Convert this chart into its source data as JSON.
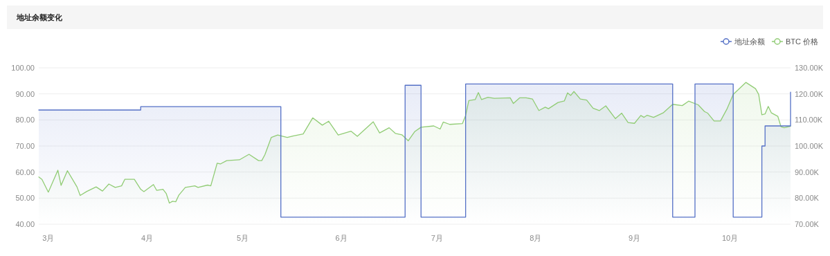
{
  "chart_data": {
    "type": "area",
    "title": "地址余额变化",
    "xlim": [
      "--02-26",
      "--10-20"
    ],
    "xticks": [
      {
        "value": "--03-01",
        "label": "3月"
      },
      {
        "value": "--04-01",
        "label": "4月"
      },
      {
        "value": "--05-01",
        "label": "5月"
      },
      {
        "value": "--06-01",
        "label": "6月"
      },
      {
        "value": "--07-01",
        "label": "7月"
      },
      {
        "value": "--08-01",
        "label": "8月"
      },
      {
        "value": "--09-01",
        "label": "9月"
      },
      {
        "value": "--10-01",
        "label": "10月"
      }
    ],
    "ylim": [
      40,
      100
    ],
    "yticks": [
      {
        "value": 40,
        "label": "40.00"
      },
      {
        "value": 50,
        "label": "50.00"
      },
      {
        "value": 60,
        "label": "60.00"
      },
      {
        "value": 70,
        "label": "70.00"
      },
      {
        "value": 80,
        "label": "80.00"
      },
      {
        "value": 90,
        "label": "90.00"
      },
      {
        "value": 100,
        "label": "100.00"
      }
    ],
    "y2lim": [
      70000,
      130000
    ],
    "y2ticks": [
      {
        "value": 70000,
        "label": "70.00K"
      },
      {
        "value": 80000,
        "label": "80.00K"
      },
      {
        "value": 90000,
        "label": "90.00K"
      },
      {
        "value": 100000,
        "label": "100.00K"
      },
      {
        "value": 110000,
        "label": "110.00K"
      },
      {
        "value": 120000,
        "label": "120.00K"
      },
      {
        "value": 130000,
        "label": "130.00K"
      }
    ],
    "grid": "y",
    "legend": "top right",
    "series": [
      {
        "name": "地址余额",
        "color": "#5470c6",
        "x": [
          "--02-26",
          "--03-30",
          "--03-30",
          "--05-13",
          "--05-13",
          "--06-21",
          "--06-21",
          "--06-26",
          "--06-26",
          "--07-10",
          "--07-10",
          "--09-13",
          "--09-13",
          "--09-20",
          "--09-20",
          "--10-02",
          "--10-02",
          "--10-11",
          "--10-11",
          "--10-12",
          "--10-12",
          "--10-20",
          "--10-20"
        ],
        "values": [
          83.8,
          83.8,
          85.1,
          85.1,
          42.7,
          42.7,
          93.3,
          93.3,
          42.7,
          42.7,
          93.8,
          93.8,
          42.7,
          42.7,
          93.8,
          93.8,
          42.7,
          42.7,
          70,
          70,
          77.7,
          77.7,
          90.7
        ]
      },
      {
        "name": "BTC 价格",
        "axis": "y2",
        "color": "#91cc75",
        "x": [
          "--02-26",
          "--02-27",
          "--03-01",
          "--03-04",
          "--03-05",
          "--03-07",
          "--03-10",
          "--03-11",
          "--03-13",
          "--03-16",
          "--03-18",
          "--03-20",
          "--03-22",
          "--03-24",
          "--03-25",
          "--03-28",
          "--03-30",
          "--03-31",
          "--04-03",
          "--04-04",
          "--04-06",
          "--04-07",
          "--04-08",
          "--04-09",
          "--04-10",
          "--04-11",
          "--04-13",
          "--04-16",
          "--04-17",
          "--04-20",
          "--04-21",
          "--04-23",
          "--04-24",
          "--04-26",
          "--04-30",
          "--05-03",
          "--05-06",
          "--05-07",
          "--05-08",
          "--05-10",
          "--05-12",
          "--05-15",
          "--05-17",
          "--05-20",
          "--05-23",
          "--05-26",
          "--05-28",
          "--05-31",
          "--06-04",
          "--06-06",
          "--06-11",
          "--06-13",
          "--06-16",
          "--06-18",
          "--06-20",
          "--06-22",
          "--06-24",
          "--06-26",
          "--06-30",
          "--07-02",
          "--07-03",
          "--07-05",
          "--07-09",
          "--07-10",
          "--07-11",
          "--07-13",
          "--07-14",
          "--07-15",
          "--07-17",
          "--07-19",
          "--07-24",
          "--07-25",
          "--07-27",
          "--07-29",
          "--07-31",
          "--08-02",
          "--08-04",
          "--08-05",
          "--08-08",
          "--08-10",
          "--08-11",
          "--08-12",
          "--08-13",
          "--08-15",
          "--08-17",
          "--08-19",
          "--08-21",
          "--08-23",
          "--08-26",
          "--08-28",
          "--08-30",
          "--09-01",
          "--09-03",
          "--09-04",
          "--09-05",
          "--09-07",
          "--09-10",
          "--09-13",
          "--09-16",
          "--09-18",
          "--09-21",
          "--09-23",
          "--09-24",
          "--09-26",
          "--09-28",
          "--09-30",
          "--10-02",
          "--10-06",
          "--10-09",
          "--10-10",
          "--10-11",
          "--10-12",
          "--10-13",
          "--10-14",
          "--10-16",
          "--10-17",
          "--10-18",
          "--10-20"
        ],
        "values": [
          88100,
          87200,
          82300,
          90700,
          84900,
          90500,
          84300,
          81000,
          82500,
          84300,
          82700,
          85400,
          84100,
          84700,
          87200,
          87200,
          83400,
          82500,
          85200,
          83000,
          83400,
          81800,
          78100,
          78800,
          78600,
          81200,
          84100,
          84700,
          84100,
          85000,
          84700,
          93400,
          93100,
          94400,
          94700,
          96800,
          94400,
          94400,
          96700,
          103300,
          104200,
          103300,
          103900,
          104600,
          110800,
          108000,
          109500,
          104200,
          105700,
          103700,
          109300,
          105000,
          107000,
          104800,
          104300,
          102000,
          105500,
          107200,
          107700,
          106500,
          109200,
          108300,
          108600,
          111700,
          117400,
          117800,
          120500,
          117800,
          118700,
          118300,
          118500,
          116300,
          118500,
          118500,
          118000,
          113600,
          114900,
          114300,
          116700,
          117300,
          120400,
          119400,
          120900,
          118000,
          117600,
          114500,
          113600,
          115400,
          110500,
          112600,
          109000,
          108700,
          111700,
          111000,
          111800,
          111000,
          112700,
          116000,
          115500,
          117200,
          115800,
          113200,
          112600,
          109600,
          109600,
          114100,
          119800,
          124400,
          122000,
          119800,
          112000,
          112300,
          115200,
          112700,
          111400,
          107400,
          107000,
          107600
        ]
      }
    ]
  }
}
